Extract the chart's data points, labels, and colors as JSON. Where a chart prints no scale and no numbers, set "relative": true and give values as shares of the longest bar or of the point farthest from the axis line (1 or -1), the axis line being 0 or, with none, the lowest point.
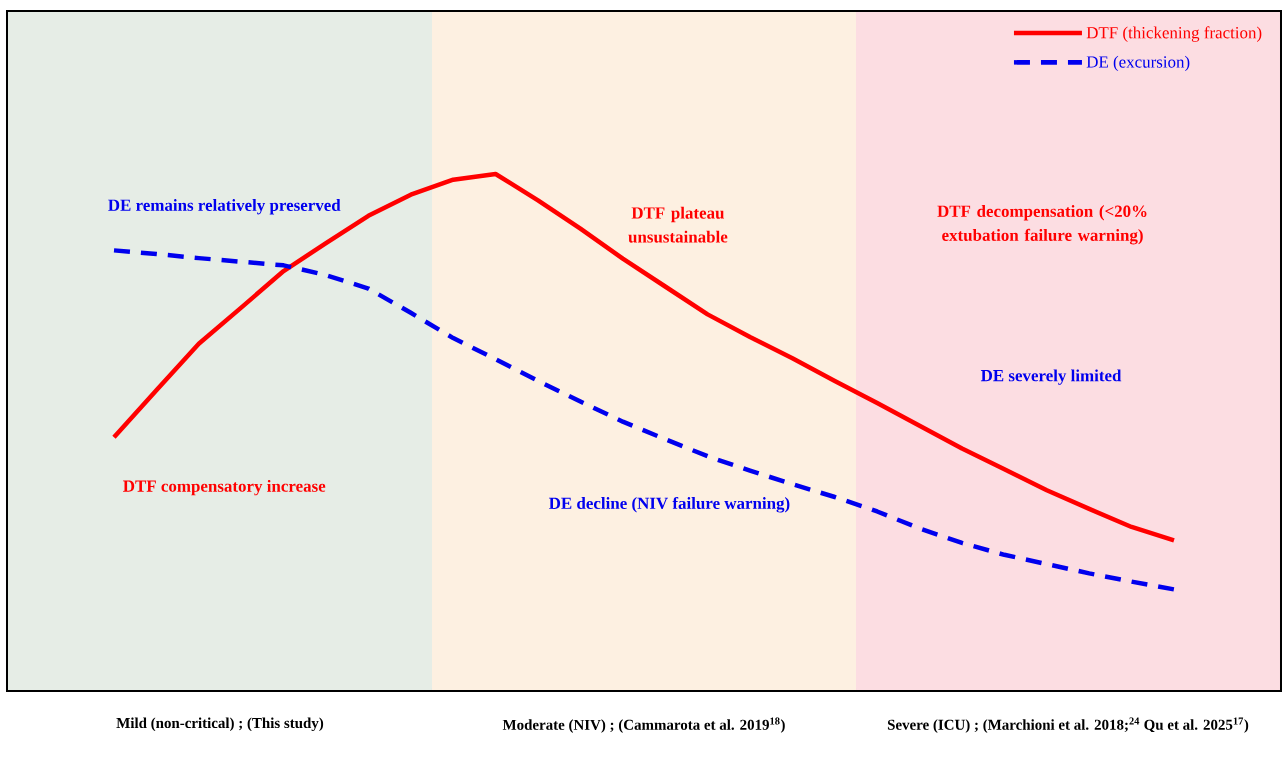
{
  "chart_data": {
    "type": "line",
    "relative": true,
    "legend": "top right",
    "categories": [
      null,
      null,
      null,
      null,
      null,
      null,
      null,
      null,
      null,
      null,
      null,
      null,
      null,
      null,
      null,
      null,
      null,
      null,
      null,
      null,
      null,
      null,
      null,
      null,
      null,
      null
    ],
    "series": [
      {
        "name": "DTF (thickening fraction)",
        "color": "#ff0000",
        "line_style": "solid",
        "values": [
          0.49,
          0.581,
          0.671,
          0.741,
          0.812,
          0.866,
          0.919,
          0.96,
          0.989,
          1.0,
          0.949,
          0.894,
          0.836,
          0.782,
          0.728,
          0.684,
          0.643,
          0.599,
          0.556,
          0.512,
          0.468,
          0.428,
          0.387,
          0.351,
          0.316,
          0.29
        ]
      },
      {
        "name": "DE (excursion)",
        "color": "#0000ee",
        "line_style": "dashed",
        "values": [
          0.852,
          0.845,
          0.837,
          0.83,
          0.823,
          0.804,
          0.778,
          0.731,
          0.682,
          0.641,
          0.599,
          0.559,
          0.52,
          0.486,
          0.453,
          0.425,
          0.399,
          0.374,
          0.346,
          0.313,
          0.285,
          0.262,
          0.244,
          0.226,
          0.21,
          0.195
        ]
      }
    ],
    "annotations": [
      "DE remains relatively preserved",
      "DTF compensatory increase",
      "DTF plateau unsustainable",
      "DTF decompensation (<20% extubation failure warning)",
      "DE severely limited",
      "DE decline (NIV failure warning)",
      "Mild (non-critical) ; (This study)",
      "Moderate (NIV) ; (Cammarota et al. 2019$^{18}$)",
      "Severe (ICU) ; (Marchioni et al. 2018;$^{24}$ Qu et al. 2025$^{17}$)"
    ]
  }
}
